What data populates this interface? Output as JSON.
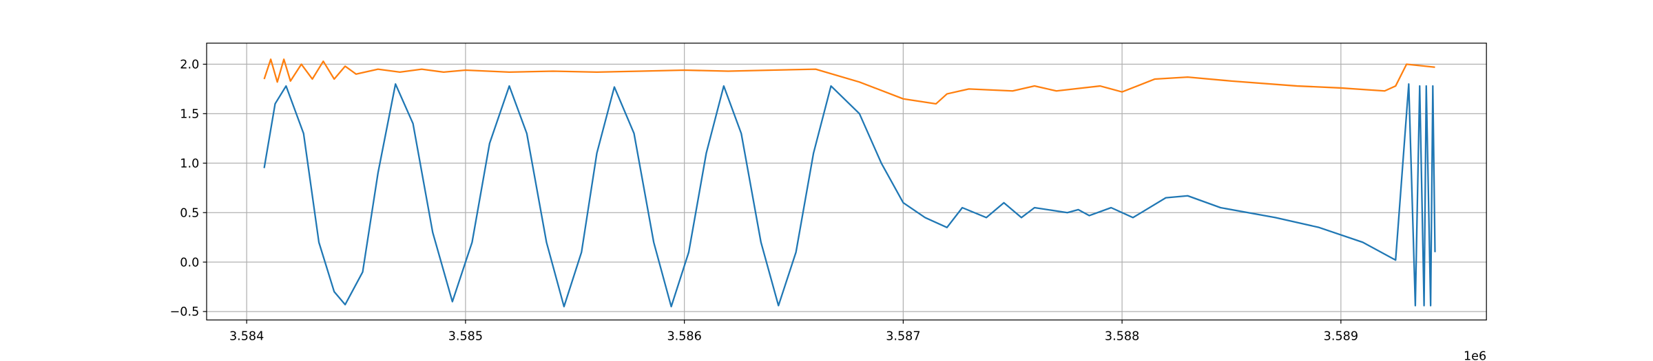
{
  "chart_data": {
    "type": "line",
    "x_offset_label": "1e6",
    "xlim": [
      3583817,
      3589665
    ],
    "ylim": [
      -0.585,
      2.213
    ],
    "xticks": [
      {
        "value": 3584000,
        "label": "3.584"
      },
      {
        "value": 3585000,
        "label": "3.585"
      },
      {
        "value": 3586000,
        "label": "3.586"
      },
      {
        "value": 3587000,
        "label": "3.587"
      },
      {
        "value": 3588000,
        "label": "3.588"
      },
      {
        "value": 3589000,
        "label": "3.589"
      }
    ],
    "yticks": [
      {
        "value": -0.5,
        "label": "−0.5"
      },
      {
        "value": 0,
        "label": "0.0"
      },
      {
        "value": 0.5,
        "label": "0.5"
      },
      {
        "value": 1,
        "label": "1.0"
      },
      {
        "value": 1.5,
        "label": "1.5"
      },
      {
        "value": 2,
        "label": "2.0"
      }
    ],
    "grid": true,
    "series": [
      {
        "color": "#1f77b4",
        "x": [
          3584080,
          3584130,
          3584180,
          3584260,
          3584330,
          3584400,
          3584450,
          3584530,
          3584600,
          3584680,
          3584760,
          3584850,
          3584940,
          3585030,
          3585110,
          3585200,
          3585280,
          3585370,
          3585450,
          3585530,
          3585600,
          3585680,
          3585770,
          3585860,
          3585940,
          3586020,
          3586100,
          3586180,
          3586260,
          3586350,
          3586430,
          3586510,
          3586590,
          3586670,
          3586800,
          3586900,
          3587000,
          3587100,
          3587200,
          3587270,
          3587380,
          3587460,
          3587540,
          3587600,
          3587750,
          3587800,
          3587850,
          3587950,
          3588050,
          3588200,
          3588300,
          3588450,
          3588700,
          3588900,
          3589100,
          3589250,
          3589310,
          3589340,
          3589360,
          3589380,
          3589390,
          3589410,
          3589420,
          3589430
        ],
        "values": [
          0.95,
          1.6,
          1.78,
          1.3,
          0.2,
          -0.3,
          -0.43,
          -0.1,
          0.9,
          1.8,
          1.4,
          0.3,
          -0.4,
          0.2,
          1.2,
          1.78,
          1.3,
          0.2,
          -0.45,
          0.1,
          1.1,
          1.77,
          1.3,
          0.2,
          -0.45,
          0.1,
          1.1,
          1.78,
          1.3,
          0.2,
          -0.44,
          0.1,
          1.1,
          1.78,
          1.5,
          1.0,
          0.6,
          0.45,
          0.35,
          0.55,
          0.45,
          0.6,
          0.45,
          0.55,
          0.5,
          0.53,
          0.47,
          0.55,
          0.45,
          0.65,
          0.67,
          0.55,
          0.45,
          0.35,
          0.2,
          0.02,
          1.8,
          -0.44,
          1.78,
          -0.44,
          1.78,
          -0.44,
          1.78,
          0.1
        ]
      },
      {
        "color": "#ff7f0e",
        "x": [
          3584080,
          3584110,
          3584140,
          3584170,
          3584200,
          3584250,
          3584300,
          3584350,
          3584400,
          3584450,
          3584500,
          3584600,
          3584700,
          3584800,
          3584900,
          3585000,
          3585200,
          3585400,
          3585600,
          3585800,
          3586000,
          3586200,
          3586400,
          3586600,
          3586800,
          3587000,
          3587150,
          3587200,
          3587300,
          3587500,
          3587600,
          3587700,
          3587900,
          3588000,
          3588150,
          3588300,
          3588500,
          3588800,
          3589000,
          3589200,
          3589250,
          3589300,
          3589430
        ],
        "values": [
          1.85,
          2.05,
          1.82,
          2.05,
          1.83,
          2.0,
          1.85,
          2.03,
          1.85,
          1.98,
          1.9,
          1.95,
          1.92,
          1.95,
          1.92,
          1.94,
          1.92,
          1.93,
          1.92,
          1.93,
          1.94,
          1.93,
          1.94,
          1.95,
          1.82,
          1.65,
          1.6,
          1.7,
          1.75,
          1.73,
          1.78,
          1.73,
          1.78,
          1.72,
          1.85,
          1.87,
          1.83,
          1.78,
          1.76,
          1.73,
          1.78,
          2.0,
          1.97
        ]
      }
    ]
  }
}
